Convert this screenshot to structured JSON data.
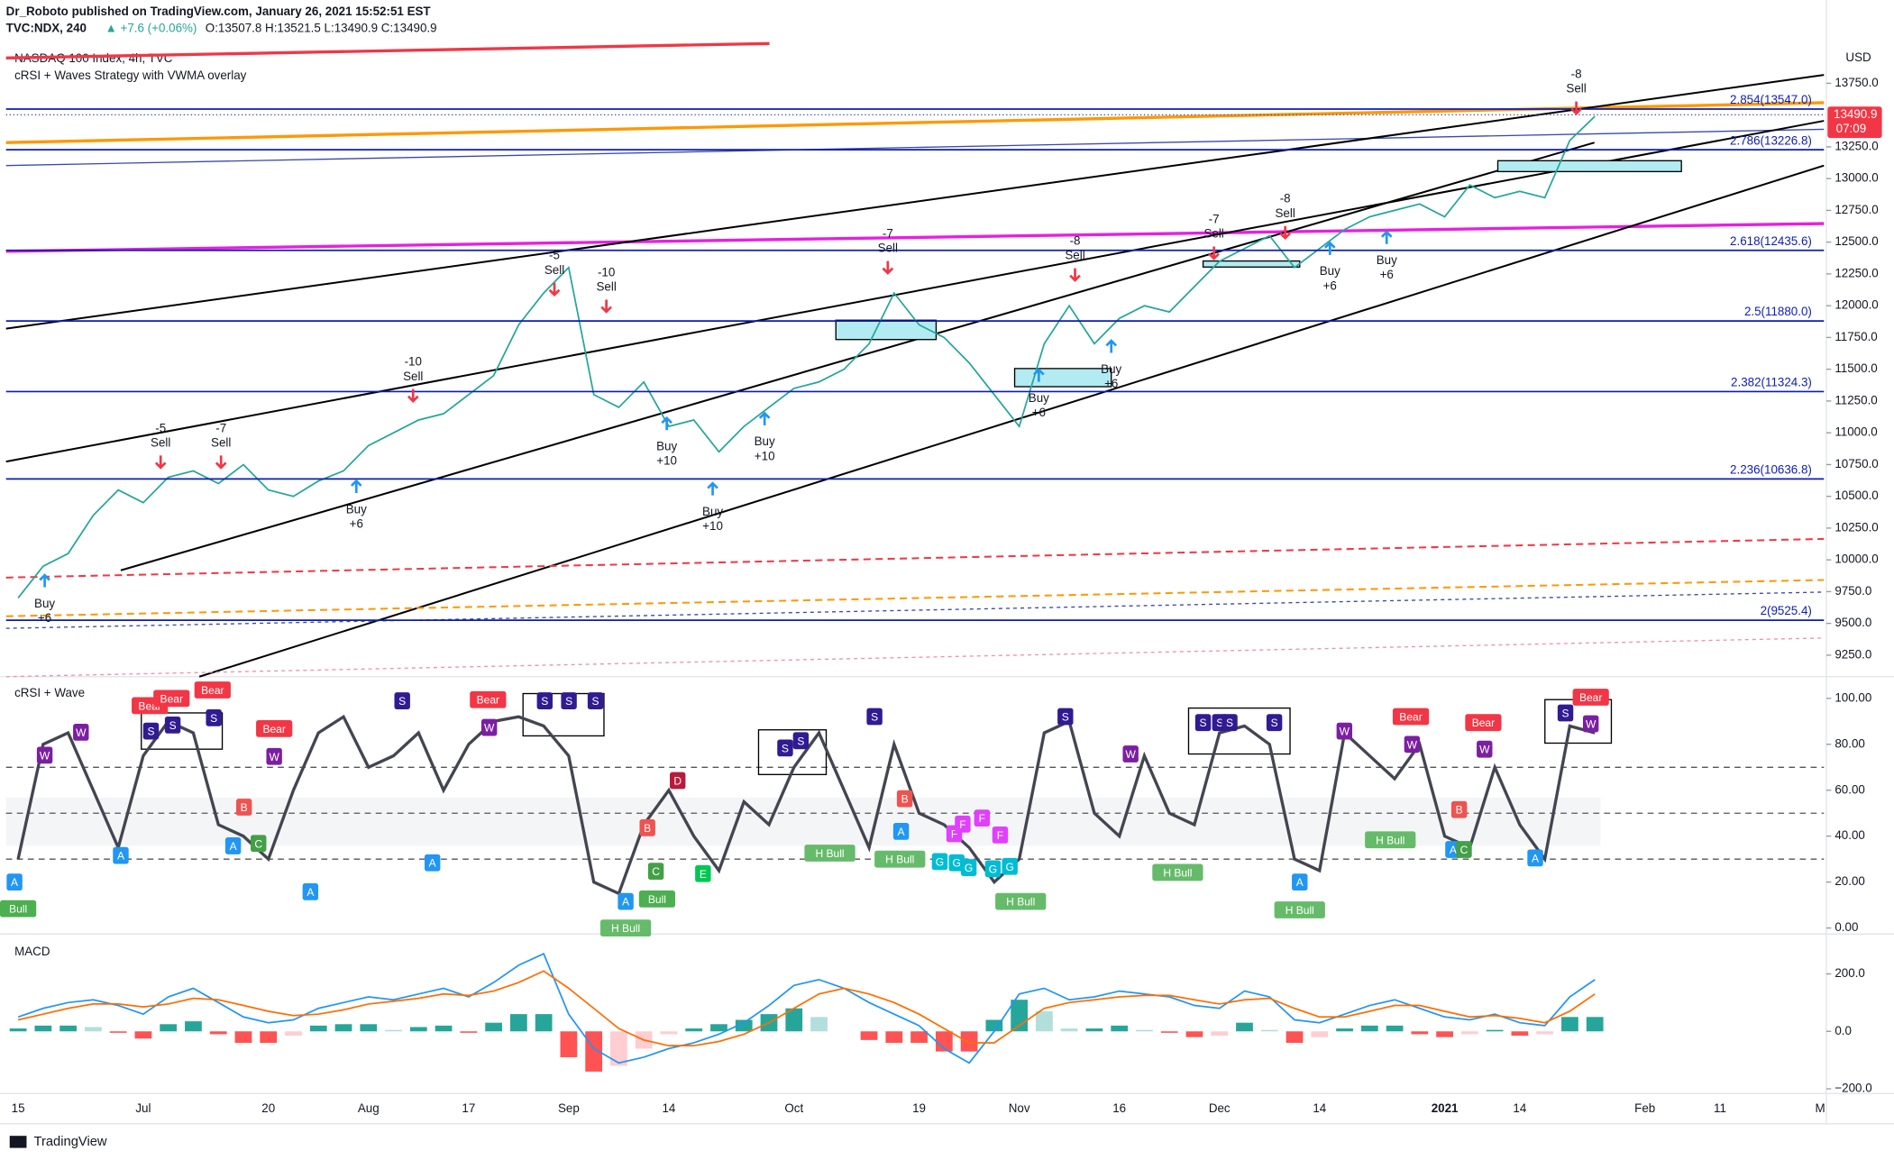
{
  "header": {
    "publisher": "Dr_Roboto published on TradingView.com, January 26, 2021 15:52:51 EST",
    "symbol": "TVC:NDX, 240",
    "change": "▲ +7.6 (+0.06%)",
    "ohlc": "O:13507.8 H:13521.5 L:13490.9 C:13490.9"
  },
  "footer": {
    "brand": "TradingView"
  },
  "chart_data": [
    {
      "type": "line",
      "title": "NASDAQ 100 Index, 4h, TVC",
      "subtitle": "cRSI + Waves Strategy with VWMA overlay",
      "currency": "USD",
      "last_price_label": "13490.9",
      "countdown": "07:09",
      "categories": [
        "15",
        null,
        null,
        null,
        null,
        "Jul",
        null,
        null,
        null,
        null,
        "20",
        null,
        null,
        null,
        "Aug",
        null,
        null,
        null,
        "17",
        null,
        null,
        null,
        "Sep",
        null,
        null,
        null,
        "14",
        null,
        null,
        null,
        null,
        "Oct",
        null,
        null,
        null,
        null,
        "19",
        null,
        null,
        null,
        "Nov",
        null,
        null,
        null,
        "16",
        null,
        null,
        null,
        "Dec",
        null,
        null,
        null,
        "14",
        null,
        null,
        null,
        null,
        "2021",
        null,
        null,
        "14",
        null,
        null,
        null,
        null,
        "Feb",
        null,
        null,
        "11",
        null,
        null,
        null,
        "M"
      ],
      "series": [
        {
          "name": "NDX",
          "color": "#26a69a",
          "values": [
            9700,
            9950,
            10050,
            10350,
            10550,
            10450,
            10650,
            10700,
            10600,
            10750,
            10550,
            10500,
            10620,
            10700,
            10900,
            11000,
            11100,
            11150,
            11300,
            11450,
            11850,
            12100,
            12300,
            11300,
            11200,
            11400,
            11050,
            11100,
            10850,
            11050,
            11200,
            11350,
            11400,
            11500,
            11700,
            12100,
            11850,
            11750,
            11550,
            11300,
            11050,
            11700,
            12000,
            11700,
            11900,
            12000,
            11950,
            12150,
            12350,
            12450,
            12550,
            12300,
            12450,
            12600,
            12700,
            12750,
            12800,
            12700,
            12950,
            12850,
            12900,
            12850,
            13300,
            13490.9,
            null,
            null,
            null,
            null,
            null,
            null,
            null,
            null,
            null
          ]
        }
      ],
      "ylim": [
        9100,
        14025
      ],
      "yticks": [
        {
          "value": 9250,
          "label": "9250.0"
        },
        {
          "value": 9500,
          "label": "9500.0"
        },
        {
          "value": 9750,
          "label": "9750.0"
        },
        {
          "value": 10000,
          "label": "10000.0"
        },
        {
          "value": 10250,
          "label": "10250.0"
        },
        {
          "value": 10500,
          "label": "10500.0"
        },
        {
          "value": 10750,
          "label": "10750.0"
        },
        {
          "value": 11000,
          "label": "11000.0"
        },
        {
          "value": 11250,
          "label": "11250.0"
        },
        {
          "value": 11500,
          "label": "11500.0"
        },
        {
          "value": 11750,
          "label": "11750.0"
        },
        {
          "value": 12000,
          "label": "12000.0"
        },
        {
          "value": 12250,
          "label": "12250.0"
        },
        {
          "value": 12500,
          "label": "12500.0"
        },
        {
          "value": 12750,
          "label": "12750.0"
        },
        {
          "value": 13000,
          "label": "13000.0"
        },
        {
          "value": 13250,
          "label": "13250.0"
        },
        {
          "value": 13750,
          "label": "13750.0"
        }
      ],
      "fib_levels": [
        {
          "value": 13547.0,
          "label": "2.854(13547.0)"
        },
        {
          "value": 13226.8,
          "label": "2.786(13226.8)"
        },
        {
          "value": 12435.6,
          "label": "2.618(12435.6)"
        },
        {
          "value": 11880.0,
          "label": "2.5(11880.0)"
        },
        {
          "value": 11324.3,
          "label": "2.382(11324.3)"
        },
        {
          "value": 10636.8,
          "label": "2.236(10636.8)"
        },
        {
          "value": 9525.4,
          "label": "2(9525.4)"
        }
      ],
      "signals": [
        [
          "-5",
          "Sell"
        ],
        [
          "-7",
          "Sell"
        ],
        [
          "-10",
          "Sell"
        ],
        [
          "-5",
          "Sell"
        ],
        [
          "-10",
          "Sell"
        ],
        [
          "-7",
          "Sell"
        ],
        [
          "-8",
          "Sell"
        ],
        [
          "-7",
          "Sell"
        ],
        [
          "-8",
          "Sell"
        ],
        [
          "-8",
          "Sell"
        ],
        [
          "Buy",
          "+6"
        ],
        [
          "Buy",
          "+6"
        ],
        [
          "Buy",
          "+10"
        ],
        [
          "Buy",
          "+10"
        ],
        [
          "Buy",
          "+10"
        ],
        [
          "Buy",
          "+6"
        ],
        [
          "Buy",
          "+6"
        ],
        [
          "Buy",
          "+6"
        ],
        [
          "Buy",
          "+6"
        ]
      ]
    },
    {
      "type": "line",
      "title": "cRSI + Wave",
      "ylim": [
        -2.1,
        108.4
      ],
      "yticks": [
        {
          "value": 0,
          "label": "0.00"
        },
        {
          "value": 20,
          "label": "20.00"
        },
        {
          "value": 40,
          "label": "40.00"
        },
        {
          "value": 60,
          "label": "60.00"
        },
        {
          "value": 80,
          "label": "80.00"
        },
        {
          "value": 100,
          "label": "100.00"
        }
      ],
      "series": [
        {
          "name": "cRSI",
          "color": "#434651",
          "values": [
            30,
            80,
            85,
            60,
            35,
            75,
            90,
            85,
            45,
            40,
            30,
            60,
            85,
            92,
            70,
            75,
            85,
            60,
            80,
            90,
            92,
            88,
            75,
            20,
            15,
            45,
            60,
            40,
            25,
            55,
            45,
            70,
            85,
            60,
            35,
            80,
            50,
            45,
            35,
            20,
            30,
            85,
            90,
            50,
            40,
            75,
            50,
            45,
            85,
            88,
            80,
            30,
            25,
            85,
            75,
            65,
            80,
            40,
            35,
            70,
            45,
            30,
            88,
            85,
            null,
            null,
            null,
            null,
            null,
            null,
            null,
            null,
            null
          ]
        }
      ],
      "markers": [
        "A",
        "Bull",
        "A",
        "Bear",
        "Bear",
        "Bear",
        "S",
        "S",
        "S",
        "W",
        "W",
        "Bear",
        "W",
        "B",
        "A",
        "C",
        "A",
        "S",
        "A",
        "Bear",
        "W",
        "S",
        "S",
        "S",
        "A",
        "B",
        "C",
        "Bull",
        "H Bull",
        "D",
        "E",
        "S",
        "S",
        "H Bull",
        "S",
        "B",
        "A",
        "H Bull",
        "F",
        "F",
        "F",
        "F",
        "G",
        "G",
        "G",
        "G",
        "G",
        "H Bull",
        "S",
        "W",
        "H Bull",
        "S",
        "S",
        "S",
        "A",
        "H Bull",
        "W",
        "Bear",
        "W",
        "H Bull",
        "Bear",
        "W",
        "B",
        "A",
        "C",
        "A",
        "S",
        "S",
        "Bear",
        "W"
      ]
    },
    {
      "type": "bar_line",
      "title": "MACD",
      "ylim": [
        -208,
        326
      ],
      "yticks": [
        {
          "value": -200,
          "label": "−200.0"
        },
        {
          "value": 0,
          "label": "0.0"
        },
        {
          "value": 200,
          "label": "200.0"
        }
      ],
      "series": [
        {
          "name": "MACD",
          "color": "#2196f3",
          "values": [
            50,
            80,
            100,
            110,
            90,
            60,
            120,
            150,
            100,
            50,
            30,
            40,
            80,
            100,
            120,
            110,
            130,
            150,
            120,
            170,
            230,
            270,
            60,
            -60,
            -110,
            -90,
            -60,
            -40,
            -10,
            30,
            90,
            160,
            180,
            150,
            100,
            60,
            20,
            -60,
            -110,
            0,
            130,
            150,
            110,
            120,
            140,
            130,
            120,
            90,
            80,
            140,
            120,
            40,
            30,
            60,
            90,
            110,
            80,
            50,
            40,
            60,
            30,
            20,
            120,
            180,
            null,
            null,
            null,
            null,
            null,
            null,
            null,
            null,
            null
          ]
        },
        {
          "name": "Signal",
          "color": "#ff6d00",
          "values": [
            40,
            60,
            80,
            95,
            95,
            85,
            95,
            115,
            110,
            90,
            70,
            55,
            60,
            75,
            95,
            105,
            115,
            130,
            125,
            140,
            170,
            210,
            150,
            80,
            10,
            -30,
            -50,
            -50,
            -35,
            -10,
            30,
            80,
            130,
            150,
            130,
            100,
            60,
            10,
            -40,
            -40,
            20,
            80,
            100,
            110,
            120,
            125,
            125,
            110,
            95,
            110,
            115,
            80,
            50,
            50,
            70,
            90,
            90,
            70,
            50,
            55,
            45,
            30,
            70,
            130,
            null,
            null,
            null,
            null,
            null,
            null,
            null,
            null,
            null
          ]
        },
        {
          "name": "Histogram",
          "color": "#26a69a",
          "values": [
            10,
            20,
            20,
            15,
            -5,
            -25,
            25,
            35,
            -10,
            -40,
            -40,
            -15,
            20,
            25,
            25,
            5,
            15,
            20,
            -5,
            30,
            60,
            60,
            -90,
            -140,
            -120,
            -60,
            -10,
            10,
            25,
            40,
            60,
            80,
            50,
            0,
            -30,
            -40,
            -40,
            -70,
            -70,
            40,
            110,
            70,
            10,
            10,
            20,
            5,
            -5,
            -20,
            -15,
            30,
            5,
            -40,
            -20,
            10,
            20,
            20,
            -10,
            -20,
            -10,
            5,
            -15,
            -10,
            50,
            50,
            null,
            null,
            null,
            null,
            null,
            null,
            null,
            null,
            null
          ]
        }
      ]
    }
  ]
}
